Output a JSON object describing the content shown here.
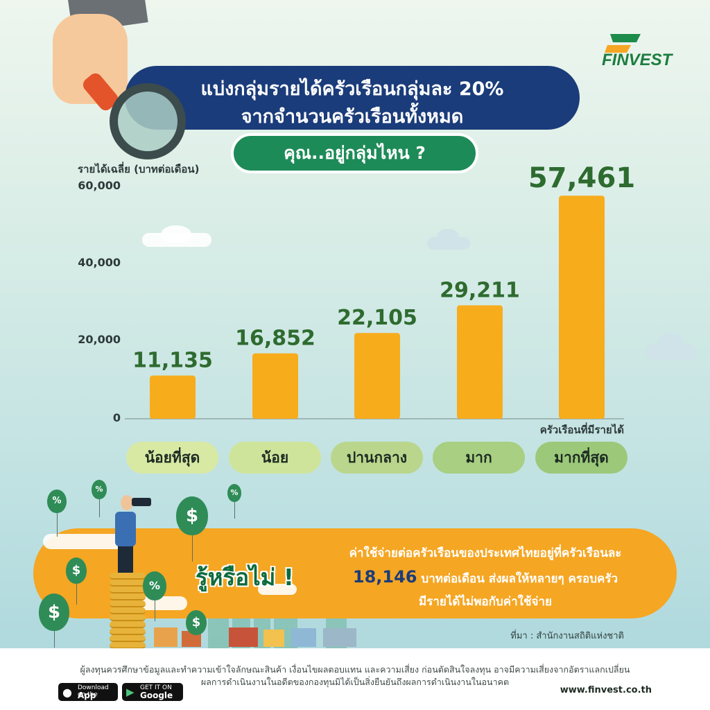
{
  "header": {
    "title_line1": "แบ่งกลุ่มรายได้ครัวเรือนกลุ่มละ 20%",
    "title_line2": "จากจำนวนครัวเรือนทั้งหมด",
    "question": "คุณ..อยู่กลุ่มไหน ?"
  },
  "logo": {
    "text": "FINVEST"
  },
  "chart_data": {
    "type": "bar",
    "categories": [
      "น้อยที่สุด",
      "น้อย",
      "ปานกลาง",
      "มาก",
      "มากที่สุด"
    ],
    "values": [
      11135,
      16852,
      22105,
      29211,
      57461
    ],
    "data_labels": [
      "11,135",
      "16,852",
      "22,105",
      "29,211",
      "57,461"
    ],
    "ylabel": "รายได้เฉลี่ย (บาทต่อเดือน)",
    "xlabel": "ครัวเรือนที่มีรายได้",
    "yticks": [
      "0",
      "20,000",
      "40,000",
      "60,000"
    ],
    "ylim": [
      0,
      60000
    ],
    "grid": false,
    "colors": {
      "bar": "#f7ac1c",
      "label": "#2e6b2f"
    }
  },
  "pills": {
    "colors": [
      "#d8e9a4",
      "#cfe49b",
      "#b9d68c",
      "#a8cf82",
      "#9cc87a"
    ]
  },
  "did_you_know": {
    "title": "รู้หรือไม่ !",
    "line1": "ค่าใช้จ่ายต่อครัวเรือนของประเทศไทยอยู่ที่ครัวเรือนละ",
    "amount": "18,146",
    "line2_rest": " บาทต่อเดือน ส่งผลให้หลายๆ ครอบครัว",
    "line3": "มีรายได้ไม่พอกับค่าใช้จ่าย",
    "source": "ที่มา : สำนักงานสถิติแห่งชาติ"
  },
  "balloons": [
    "%",
    "%",
    "$",
    "%",
    "$",
    "%",
    "$",
    "$"
  ],
  "footer": {
    "disclaimer_line1": "ผู้ลงทุนควรศึกษาข้อมูลและทำความเข้าใจลักษณะสินค้า เงื่อนไขผลตอบแทน และความเสี่ยง ก่อนตัดสินใจลงทุน อาจมีความเสี่ยงจากอัตราแลกเปลี่ยน",
    "disclaimer_line2": "ผลการดำเนินงานในอดีตของกองทุนมิได้เป็นสิ่งยืนยันถึงผลการดำเนินงานในอนาคต",
    "appstore_small": "Download on the",
    "appstore_big": "App Store",
    "googleplay_small": "GET IT ON",
    "googleplay_big": "Google Play",
    "website": "www.finvest.co.th"
  }
}
